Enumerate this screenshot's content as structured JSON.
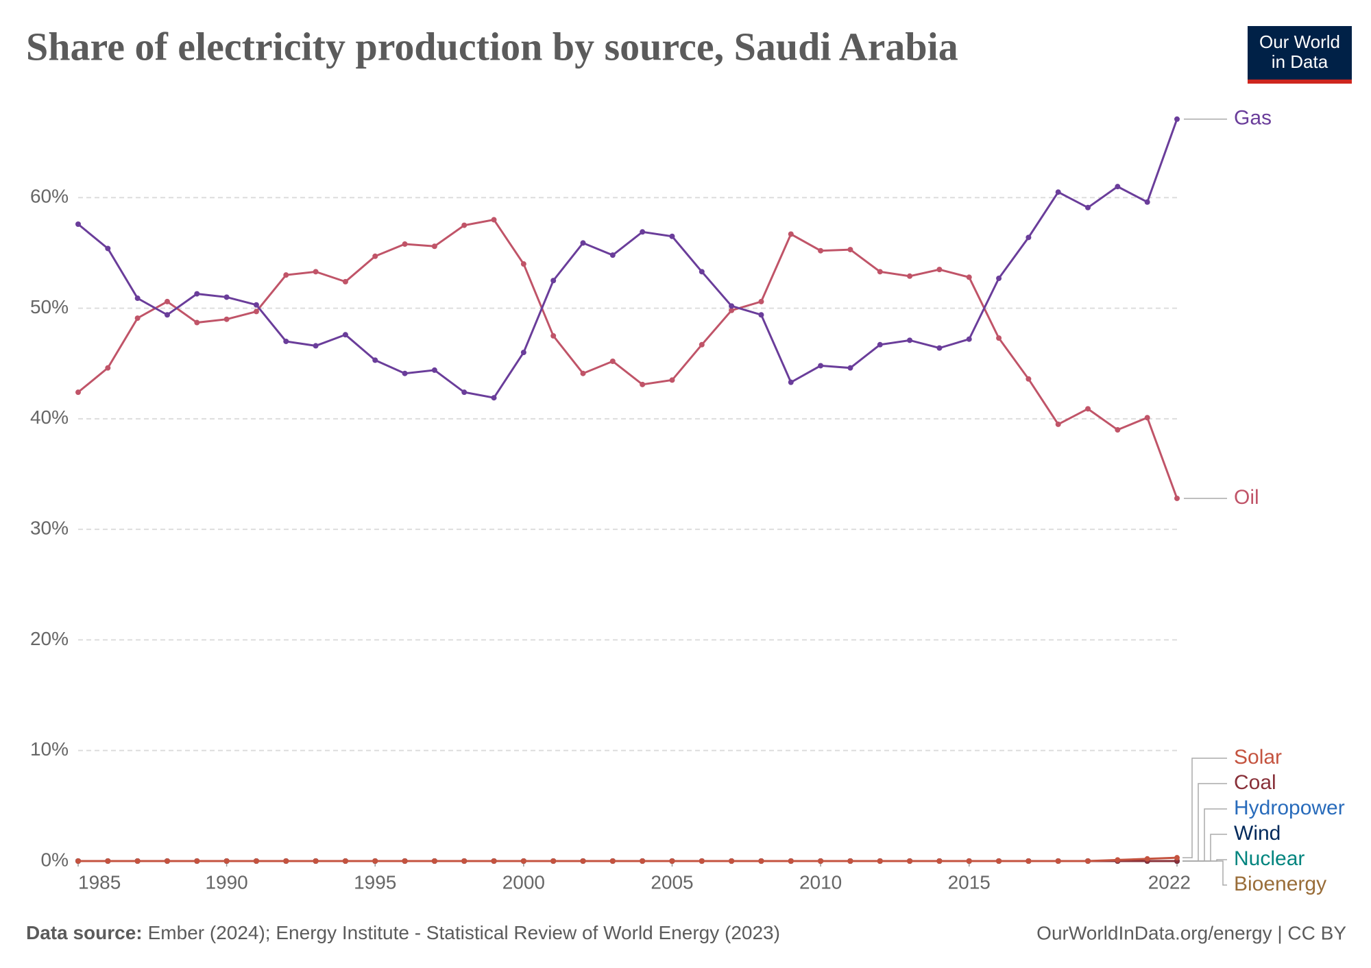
{
  "chart_data": {
    "type": "line",
    "title": "Share of electricity production by source, Saudi Arabia",
    "logo": [
      "Our World",
      "in Data"
    ],
    "source_label": "Data source:",
    "source_text": "Ember (2024); Energy Institute - Statistical Review of World Energy (2023)",
    "credit": "OurWorldInData.org/energy | CC BY",
    "x": [
      1985,
      1986,
      1987,
      1988,
      1989,
      1990,
      1991,
      1992,
      1993,
      1994,
      1995,
      1996,
      1997,
      1998,
      1999,
      2000,
      2001,
      2002,
      2003,
      2004,
      2005,
      2006,
      2007,
      2008,
      2009,
      2010,
      2011,
      2012,
      2013,
      2014,
      2015,
      2016,
      2017,
      2018,
      2019,
      2020,
      2021,
      2022
    ],
    "xlim": [
      1985,
      2022
    ],
    "xticks": [
      1985,
      1990,
      1995,
      2000,
      2005,
      2010,
      2015,
      2022
    ],
    "ylim": [
      0,
      70
    ],
    "yticks": [
      {
        "value": 0,
        "label": "0%"
      },
      {
        "value": 10,
        "label": "10%"
      },
      {
        "value": 20,
        "label": "20%"
      },
      {
        "value": 30,
        "label": "30%"
      },
      {
        "value": 40,
        "label": "40%"
      },
      {
        "value": 50,
        "label": "50%"
      },
      {
        "value": 60,
        "label": "60%"
      }
    ],
    "grid": true,
    "series": [
      {
        "name": "Gas",
        "color": "#6a3d9a",
        "values": [
          57.6,
          55.4,
          50.9,
          49.4,
          51.3,
          51.0,
          50.3,
          47.0,
          46.6,
          47.6,
          45.3,
          44.1,
          44.4,
          42.4,
          41.9,
          46.0,
          52.5,
          55.9,
          54.8,
          56.9,
          56.5,
          53.3,
          50.2,
          49.4,
          43.3,
          44.8,
          44.6,
          46.7,
          47.1,
          46.4,
          47.2,
          52.7,
          56.4,
          60.5,
          59.1,
          61.0,
          59.6,
          67.1
        ]
      },
      {
        "name": "Oil",
        "color": "#c05468",
        "values": [
          42.4,
          44.6,
          49.1,
          50.6,
          48.7,
          49.0,
          49.7,
          53.0,
          53.3,
          52.4,
          54.7,
          55.8,
          55.6,
          57.5,
          58.0,
          54.0,
          47.5,
          44.1,
          45.2,
          43.1,
          43.5,
          46.7,
          49.8,
          50.6,
          56.7,
          55.2,
          55.3,
          53.3,
          52.9,
          53.5,
          52.8,
          47.3,
          43.6,
          39.5,
          40.9,
          39.0,
          40.1,
          32.8
        ]
      },
      {
        "name": "Solar",
        "color": "#c4533f",
        "values": [
          0,
          0,
          0,
          0,
          0,
          0,
          0,
          0,
          0,
          0,
          0,
          0,
          0,
          0,
          0,
          0,
          0,
          0,
          0,
          0,
          0,
          0,
          0,
          0,
          0,
          0,
          0,
          0,
          0,
          0,
          0,
          0,
          0,
          0,
          0,
          0.1,
          0.2,
          0.3
        ]
      },
      {
        "name": "Coal",
        "color": "#883039",
        "values": [
          0,
          0,
          0,
          0,
          0,
          0,
          0,
          0,
          0,
          0,
          0,
          0,
          0,
          0,
          0,
          0,
          0,
          0,
          0,
          0,
          0,
          0,
          0,
          0,
          0,
          0,
          0,
          0,
          0,
          0,
          0,
          0,
          0,
          0,
          0,
          0,
          0,
          0
        ]
      },
      {
        "name": "Hydropower",
        "color": "#286bbb",
        "values": [
          0,
          0,
          0,
          0,
          0,
          0,
          0,
          0,
          0,
          0,
          0,
          0,
          0,
          0,
          0,
          0,
          0,
          0,
          0,
          0,
          0,
          0,
          0,
          0,
          0,
          0,
          0,
          0,
          0,
          0,
          0,
          0,
          0,
          0,
          0,
          0,
          0,
          0
        ]
      },
      {
        "name": "Wind",
        "color": "#00295b",
        "values": [
          0,
          0,
          0,
          0,
          0,
          0,
          0,
          0,
          0,
          0,
          0,
          0,
          0,
          0,
          0,
          0,
          0,
          0,
          0,
          0,
          0,
          0,
          0,
          0,
          0,
          0,
          0,
          0,
          0,
          0,
          0,
          0,
          0,
          0,
          0,
          0,
          0,
          0
        ]
      },
      {
        "name": "Nuclear",
        "color": "#00847e",
        "values": [
          0,
          0,
          0,
          0,
          0,
          0,
          0,
          0,
          0,
          0,
          0,
          0,
          0,
          0,
          0,
          0,
          0,
          0,
          0,
          0,
          0,
          0,
          0,
          0,
          0,
          0,
          0,
          0,
          0,
          0,
          0,
          0,
          0,
          0,
          0,
          0,
          0,
          0
        ]
      },
      {
        "name": "Bioenergy",
        "color": "#996d39",
        "values": [
          0,
          0,
          0,
          0,
          0,
          0,
          0,
          0,
          0,
          0,
          0,
          0,
          0,
          0,
          0,
          0,
          0,
          0,
          0,
          0,
          0,
          0,
          0,
          0,
          0,
          0,
          0,
          0,
          0,
          0,
          0,
          0,
          0,
          0,
          0,
          0,
          0,
          0
        ]
      }
    ]
  }
}
